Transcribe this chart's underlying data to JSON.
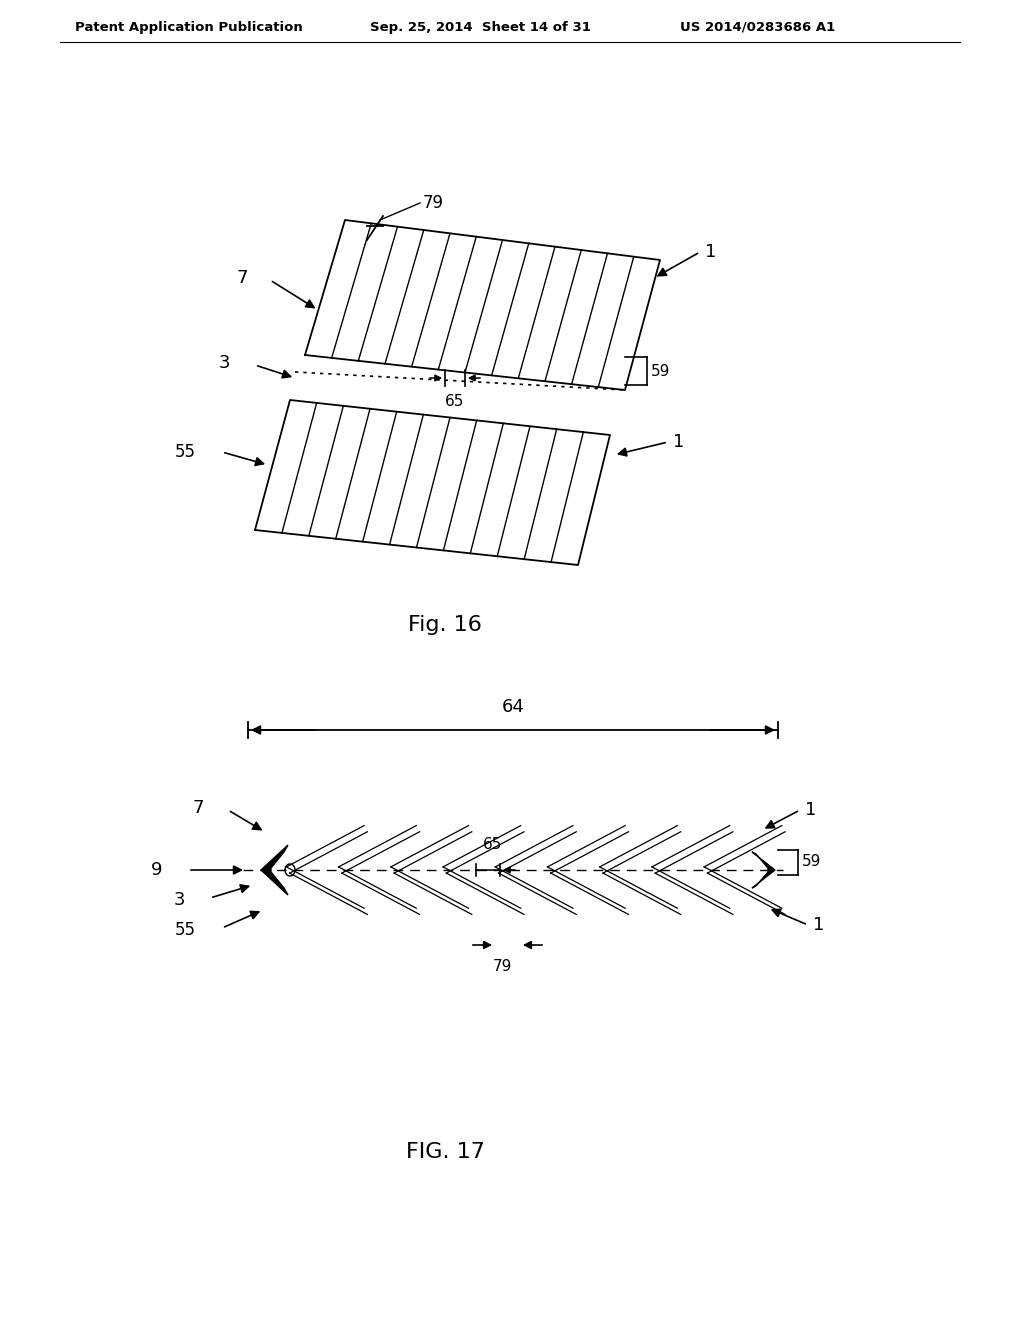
{
  "bg_color": "#ffffff",
  "header_left": "Patent Application Publication",
  "header_mid": "Sep. 25, 2014  Sheet 14 of 31",
  "header_right": "US 2014/0283686 A1",
  "fig16_caption": "Fig. 16",
  "fig17_caption": "FIG. 17"
}
